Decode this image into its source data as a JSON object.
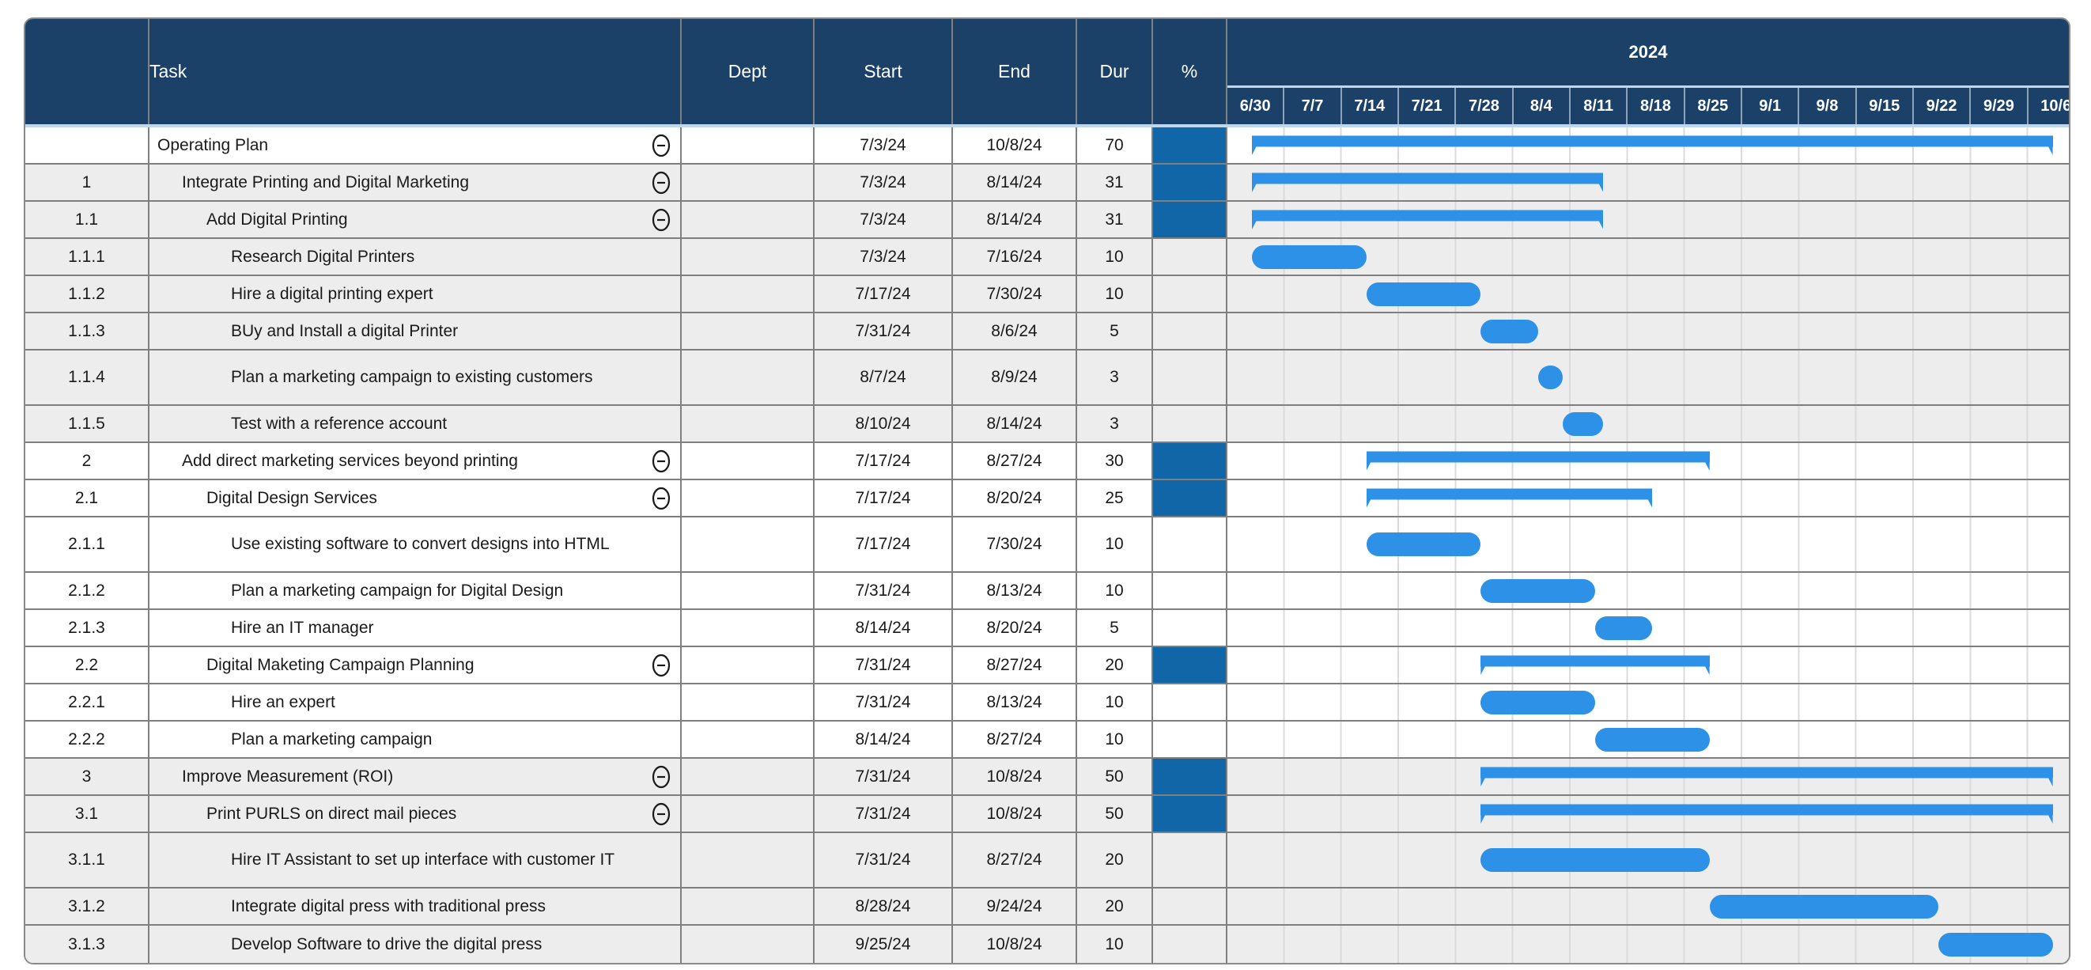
{
  "timeline": {
    "year": "2024",
    "weeks": [
      "6/30",
      "7/7",
      "7/14",
      "7/21",
      "7/28",
      "8/4",
      "8/11",
      "8/18",
      "8/25",
      "9/1",
      "9/8",
      "9/15",
      "9/22",
      "9/29",
      "10/6"
    ]
  },
  "columns": {
    "id": "",
    "task": "Task",
    "dept": "Dept",
    "start": "Start",
    "end": "End",
    "dur": "Dur",
    "pct": "%"
  },
  "colors": {
    "header_navy": "#1c4168",
    "bar_blue": "#2e91e8",
    "pct_fill_blue": "#1166a8",
    "band_gray": "#ededed",
    "accent_light_blue": "#bdd7ee",
    "grid_gray": "#808080"
  },
  "rows": [
    {
      "id": "",
      "task": "Operating Plan",
      "dept": "",
      "start": "7/3/24",
      "end": "10/8/24",
      "dur": "70",
      "pct": "",
      "summary": true,
      "shaded": false,
      "tall": false
    },
    {
      "id": "1",
      "task": "Integrate Printing and Digital Marketing",
      "dept": "",
      "start": "7/3/24",
      "end": "8/14/24",
      "dur": "31",
      "pct": "",
      "summary": true,
      "shaded": true,
      "tall": false
    },
    {
      "id": "1.1",
      "task": "Add Digital Printing",
      "dept": "",
      "start": "7/3/24",
      "end": "8/14/24",
      "dur": "31",
      "pct": "",
      "summary": true,
      "shaded": true,
      "tall": false
    },
    {
      "id": "1.1.1",
      "task": "Research Digital Printers",
      "dept": "",
      "start": "7/3/24",
      "end": "7/16/24",
      "dur": "10",
      "pct": "",
      "summary": false,
      "shaded": true,
      "tall": false
    },
    {
      "id": "1.1.2",
      "task": "Hire a digital printing expert",
      "dept": "",
      "start": "7/17/24",
      "end": "7/30/24",
      "dur": "10",
      "pct": "",
      "summary": false,
      "shaded": true,
      "tall": false
    },
    {
      "id": "1.1.3",
      "task": "BUy and Install a digital Printer",
      "dept": "",
      "start": "7/31/24",
      "end": "8/6/24",
      "dur": "5",
      "pct": "",
      "summary": false,
      "shaded": true,
      "tall": false
    },
    {
      "id": "1.1.4",
      "task": "Plan a marketing campaign to existing customers",
      "dept": "",
      "start": "8/7/24",
      "end": "8/9/24",
      "dur": "3",
      "pct": "",
      "summary": false,
      "shaded": true,
      "tall": true
    },
    {
      "id": "1.1.5",
      "task": "Test with a reference account",
      "dept": "",
      "start": "8/10/24",
      "end": "8/14/24",
      "dur": "3",
      "pct": "",
      "summary": false,
      "shaded": true,
      "tall": false
    },
    {
      "id": "2",
      "task": "Add direct marketing services beyond printing",
      "dept": "",
      "start": "7/17/24",
      "end": "8/27/24",
      "dur": "30",
      "pct": "",
      "summary": true,
      "shaded": false,
      "tall": false
    },
    {
      "id": "2.1",
      "task": "Digital Design Services",
      "dept": "",
      "start": "7/17/24",
      "end": "8/20/24",
      "dur": "25",
      "pct": "",
      "summary": true,
      "shaded": false,
      "tall": false
    },
    {
      "id": "2.1.1",
      "task": "Use existing software to convert designs into HTML",
      "dept": "",
      "start": "7/17/24",
      "end": "7/30/24",
      "dur": "10",
      "pct": "",
      "summary": false,
      "shaded": false,
      "tall": true
    },
    {
      "id": "2.1.2",
      "task": "Plan a marketing campaign for Digital Design",
      "dept": "",
      "start": "7/31/24",
      "end": "8/13/24",
      "dur": "10",
      "pct": "",
      "summary": false,
      "shaded": false,
      "tall": false
    },
    {
      "id": "2.1.3",
      "task": "Hire an IT manager",
      "dept": "",
      "start": "8/14/24",
      "end": "8/20/24",
      "dur": "5",
      "pct": "",
      "summary": false,
      "shaded": false,
      "tall": false
    },
    {
      "id": "2.2",
      "task": "Digital Maketing Campaign Planning",
      "dept": "",
      "start": "7/31/24",
      "end": "8/27/24",
      "dur": "20",
      "pct": "",
      "summary": true,
      "shaded": false,
      "tall": false
    },
    {
      "id": "2.2.1",
      "task": "Hire an expert",
      "dept": "",
      "start": "7/31/24",
      "end": "8/13/24",
      "dur": "10",
      "pct": "",
      "summary": false,
      "shaded": false,
      "tall": false
    },
    {
      "id": "2.2.2",
      "task": "Plan a marketing campaign",
      "dept": "",
      "start": "8/14/24",
      "end": "8/27/24",
      "dur": "10",
      "pct": "",
      "summary": false,
      "shaded": false,
      "tall": false
    },
    {
      "id": "3",
      "task": "Improve Measurement (ROI)",
      "dept": "",
      "start": "7/31/24",
      "end": "10/8/24",
      "dur": "50",
      "pct": "",
      "summary": true,
      "shaded": true,
      "tall": false
    },
    {
      "id": "3.1",
      "task": "Print PURLS on direct mail pieces",
      "dept": "",
      "start": "7/31/24",
      "end": "10/8/24",
      "dur": "50",
      "pct": "",
      "summary": true,
      "shaded": true,
      "tall": false
    },
    {
      "id": "3.1.1",
      "task": "Hire IT Assistant to set up interface with customer IT",
      "dept": "",
      "start": "7/31/24",
      "end": "8/27/24",
      "dur": "20",
      "pct": "",
      "summary": false,
      "shaded": true,
      "tall": true
    },
    {
      "id": "3.1.2",
      "task": "Integrate digital press with traditional press",
      "dept": "",
      "start": "8/28/24",
      "end": "9/24/24",
      "dur": "20",
      "pct": "",
      "summary": false,
      "shaded": true,
      "tall": false
    },
    {
      "id": "3.1.3",
      "task": "Develop Software to drive the digital press",
      "dept": "",
      "start": "9/25/24",
      "end": "10/8/24",
      "dur": "10",
      "pct": "",
      "summary": false,
      "shaded": true,
      "tall": false
    }
  ],
  "chart_data": {
    "type": "bar",
    "subtype": "gantt",
    "title": "2024",
    "x_ticks": [
      "6/30",
      "7/7",
      "7/14",
      "7/21",
      "7/28",
      "8/4",
      "8/11",
      "8/18",
      "8/25",
      "9/1",
      "9/8",
      "9/15",
      "9/22",
      "9/29",
      "10/6"
    ],
    "x_axis_unit": "weeks starting 6/30/2024",
    "tasks": [
      [
        "Operating Plan",
        "7/3/24",
        "10/8/24",
        70,
        "summary"
      ],
      [
        "Integrate Printing and Digital Marketing",
        "7/3/24",
        "8/14/24",
        31,
        "summary"
      ],
      [
        "Add Digital Printing",
        "7/3/24",
        "8/14/24",
        31,
        "summary"
      ],
      [
        "Research Digital Printers",
        "7/3/24",
        "7/16/24",
        10,
        "task"
      ],
      [
        "Hire a digital printing expert",
        "7/17/24",
        "7/30/24",
        10,
        "task"
      ],
      [
        "BUy and Install a digital Printer",
        "7/31/24",
        "8/6/24",
        5,
        "task"
      ],
      [
        "Plan a marketing campaign to existing customers",
        "8/7/24",
        "8/9/24",
        3,
        "task"
      ],
      [
        "Test with a reference account",
        "8/10/24",
        "8/14/24",
        3,
        "task"
      ],
      [
        "Add direct marketing services beyond printing",
        "7/17/24",
        "8/27/24",
        30,
        "summary"
      ],
      [
        "Digital Design Services",
        "7/17/24",
        "8/20/24",
        25,
        "summary"
      ],
      [
        "Use existing software to convert designs into HTML",
        "7/17/24",
        "7/30/24",
        10,
        "task"
      ],
      [
        "Plan a marketing campaign for Digital Design",
        "7/31/24",
        "8/13/24",
        10,
        "task"
      ],
      [
        "Hire an IT manager",
        "8/14/24",
        "8/20/24",
        5,
        "task"
      ],
      [
        "Digital Maketing Campaign Planning",
        "7/31/24",
        "8/27/24",
        20,
        "summary"
      ],
      [
        "Hire an expert",
        "7/31/24",
        "8/13/24",
        10,
        "task"
      ],
      [
        "Plan a marketing campaign",
        "8/14/24",
        "8/27/24",
        10,
        "task"
      ],
      [
        "Improve Measurement (ROI)",
        "7/31/24",
        "10/8/24",
        50,
        "summary"
      ],
      [
        "Print PURLS on direct mail pieces",
        "7/31/24",
        "10/8/24",
        50,
        "summary"
      ],
      [
        "Hire IT Assistant to set up interface with customer IT",
        "7/31/24",
        "8/27/24",
        20,
        "task"
      ],
      [
        "Integrate digital press with traditional press",
        "8/28/24",
        "9/24/24",
        20,
        "task"
      ],
      [
        "Develop Software to drive the digital press",
        "9/25/24",
        "10/8/24",
        10,
        "task"
      ]
    ]
  }
}
